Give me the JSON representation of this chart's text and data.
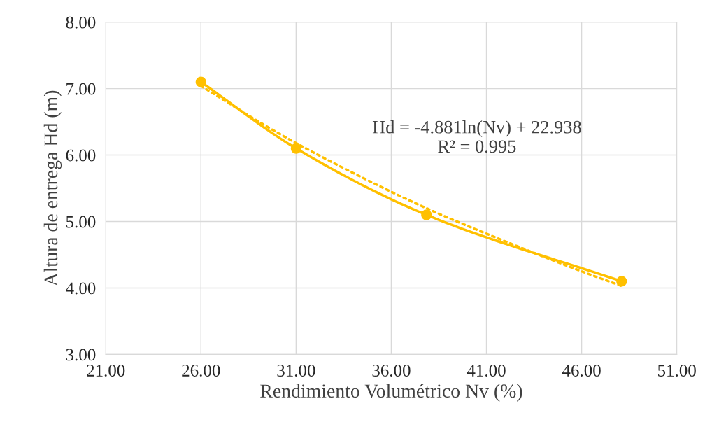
{
  "chart_data": {
    "type": "line",
    "xlabel": "Rendimiento Volumétrico Nv (%)",
    "ylabel": "Altura de entrega Hd (m)",
    "series": [
      {
        "marker": "circle",
        "line_style": "solid",
        "color": "#ffc000",
        "x": [
          26.0,
          31.0,
          37.85,
          48.1
        ],
        "values": [
          7.1,
          6.1,
          5.1,
          4.1
        ]
      },
      {
        "marker": "none",
        "line_style": "dotted",
        "color": "#ffc000",
        "x": [
          26.0,
          30.0,
          34.0,
          38.0,
          42.0,
          46.0,
          48.1
        ],
        "values": [
          7.04,
          6.34,
          5.73,
          5.18,
          4.7,
          4.25,
          4.03
        ]
      }
    ],
    "annotations": [
      "Hd = -4.881ln(Nv) + 22.938\nR² = 0.995"
    ],
    "xlim": [
      21,
      51
    ],
    "xticks": [
      {
        "value": 21,
        "label": "21.00"
      },
      {
        "value": 26,
        "label": "26.00"
      },
      {
        "value": 31,
        "label": "31.00"
      },
      {
        "value": 36,
        "label": "36.00"
      },
      {
        "value": 41,
        "label": "41.00"
      },
      {
        "value": 46,
        "label": "46.00"
      },
      {
        "value": 51,
        "label": "51.00"
      }
    ],
    "ylim": [
      3,
      8
    ],
    "yticks": [
      {
        "value": 3,
        "label": "3.00"
      },
      {
        "value": 4,
        "label": "4.00"
      },
      {
        "value": 5,
        "label": "5.00"
      },
      {
        "value": 6,
        "label": "6.00"
      },
      {
        "value": 7,
        "label": "7.00"
      },
      {
        "value": 8,
        "label": "8.00"
      }
    ],
    "grid": true,
    "legend": false
  }
}
